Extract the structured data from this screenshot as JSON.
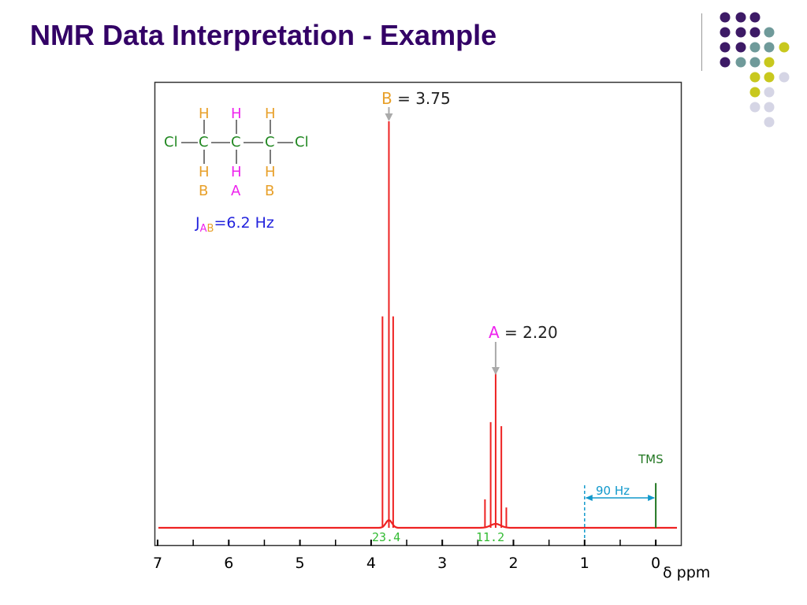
{
  "slide": {
    "title": "NMR Data Interpretation - Example"
  },
  "structure": {
    "row_top": [
      "H",
      "H",
      "H"
    ],
    "backbone_atoms": [
      "Cl",
      "C",
      "C",
      "C",
      "Cl"
    ],
    "row_bottom": [
      "H",
      "H",
      "H"
    ],
    "proton_labels": [
      "B",
      "A",
      "B"
    ],
    "coupling_label": "J",
    "coupling_sub": [
      "A",
      "B"
    ],
    "coupling_value": "=6.2 Hz"
  },
  "annotations": {
    "peak_b": {
      "letter": "B",
      "text": "= 3.75"
    },
    "peak_a": {
      "letter": "A",
      "text": "= 2.20"
    },
    "integral_b": "23.4",
    "integral_a": "11.2",
    "tms": "TMS",
    "hz_scale": "90 Hz"
  },
  "colors": {
    "title": "#330066",
    "spectrum": "#ee2222",
    "proton_b": "#e8a02a",
    "proton_a": "#ee22ee",
    "tms": "#227722",
    "integral": "#33bb33",
    "hz_scale": "#1199cc",
    "coupling": "#2222dd",
    "dot_purple": "#3d1a66",
    "dot_teal": "#6f9a9a",
    "dot_olive": "#c8c81e",
    "dot_lavender": "#d5d5e5"
  },
  "chart_data": {
    "type": "line",
    "title": "",
    "xlabel": "δ ppm",
    "ylabel": "",
    "xlim": [
      7.0,
      -0.35
    ],
    "x_reversed": true,
    "x_ticks": [
      "7",
      "6",
      "5",
      "4",
      "3",
      "2",
      "1",
      "0"
    ],
    "grid": false,
    "series": [
      {
        "name": "B",
        "shift_ppm": 3.75,
        "multiplicity": "triplet",
        "lines": [
          {
            "x": 3.84,
            "y": 0.52
          },
          {
            "x": 3.75,
            "y": 1.0
          },
          {
            "x": 3.69,
            "y": 0.52
          }
        ]
      },
      {
        "name": "A",
        "shift_ppm": 2.2,
        "multiplicity": "quintet",
        "lines": [
          {
            "x": 2.4,
            "y": 0.07
          },
          {
            "x": 2.32,
            "y": 0.26
          },
          {
            "x": 2.25,
            "y": 0.39
          },
          {
            "x": 2.17,
            "y": 0.25
          },
          {
            "x": 2.1,
            "y": 0.05
          }
        ]
      },
      {
        "name": "TMS",
        "shift_ppm": 0.0,
        "lines": [
          {
            "x": 0.0,
            "y": 0.11
          }
        ]
      }
    ],
    "integrals": [
      {
        "x": 3.75,
        "value": 23.4
      },
      {
        "x": 2.2,
        "value": 11.2
      }
    ],
    "scale_bar": {
      "from": 1.0,
      "to": 0.0,
      "label": "90 Hz"
    },
    "coupling_constant_hz": 6.2
  }
}
